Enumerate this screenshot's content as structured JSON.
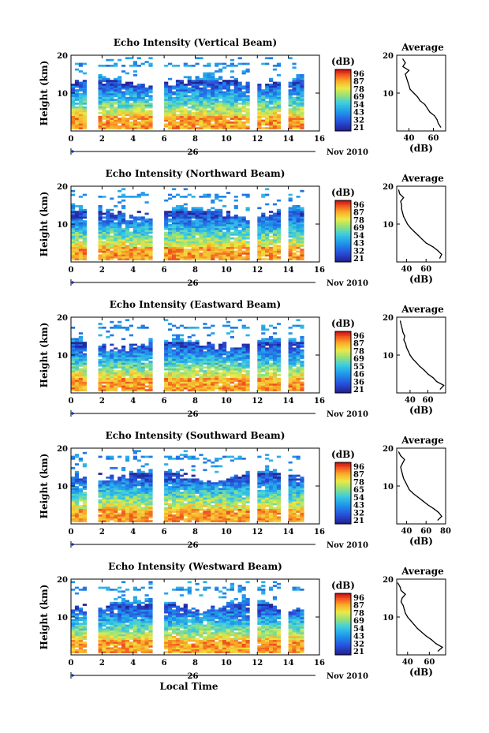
{
  "chart_data": [
    {
      "type": "heatmap",
      "title": "Echo Intensity (Vertical Beam)",
      "ylabel": "Height (km)",
      "xlim": [
        0,
        16
      ],
      "ylim": [
        0,
        20
      ],
      "x_ticks": [
        "0",
        "2",
        "4",
        "6",
        "8",
        "10",
        "12",
        "14",
        "16"
      ],
      "y_ticks": [
        "10",
        "20"
      ],
      "colorbar": {
        "unit": "(dB)",
        "labels": [
          "96",
          "87",
          "78",
          "69",
          "54",
          "43",
          "32",
          "21"
        ],
        "range": [
          21,
          96
        ]
      },
      "gaps_hours": [
        [
          1.0,
          1.7
        ],
        [
          5.3,
          5.9
        ],
        [
          11.5,
          11.9
        ],
        [
          13.6,
          14.0
        ]
      ],
      "date_label": "26",
      "month_label": "Nov 2010",
      "profile": {
        "title": "Average",
        "xlabel": "(dB)",
        "x_ticks": [
          "40",
          "60"
        ],
        "xlim": [
          30,
          70
        ],
        "y_ticks": [
          "10",
          "20"
        ],
        "heights": [
          1,
          2,
          3,
          4,
          5,
          6,
          7,
          8,
          9,
          10,
          11,
          12,
          13,
          14,
          15,
          16,
          17,
          18,
          19
        ],
        "values": [
          66,
          64,
          63,
          61,
          57,
          55,
          53,
          49,
          47,
          44,
          41,
          40,
          39,
          38,
          37,
          40,
          35,
          37,
          35
        ]
      }
    },
    {
      "type": "heatmap",
      "title": "Echo Intensity (Northward Beam)",
      "ylabel": "Height (km)",
      "xlim": [
        0,
        16
      ],
      "ylim": [
        0,
        20
      ],
      "x_ticks": [
        "0",
        "2",
        "4",
        "6",
        "8",
        "10",
        "12",
        "14",
        "16"
      ],
      "y_ticks": [
        "10",
        "20"
      ],
      "colorbar": {
        "unit": "(dB)",
        "labels": [
          "96",
          "87",
          "78",
          "69",
          "54",
          "43",
          "32",
          "21"
        ],
        "range": [
          21,
          96
        ]
      },
      "gaps_hours": [
        [
          1.0,
          1.7
        ],
        [
          5.3,
          5.9
        ],
        [
          11.5,
          11.9
        ],
        [
          13.6,
          14.0
        ]
      ],
      "date_label": "26",
      "month_label": "Nov 2010",
      "profile": {
        "title": "Average",
        "xlabel": "(dB)",
        "x_ticks": [
          "40",
          "60"
        ],
        "xlim": [
          30,
          80
        ],
        "y_ticks": [
          "10",
          "20"
        ],
        "heights": [
          1,
          2,
          3,
          4,
          5,
          6,
          7,
          8,
          9,
          10,
          11,
          12,
          13,
          14,
          15,
          16,
          17,
          18,
          19
        ],
        "values": [
          74,
          76,
          72,
          67,
          60,
          56,
          52,
          48,
          44,
          41,
          39,
          37,
          36,
          35,
          35,
          34,
          37,
          33,
          32
        ]
      }
    },
    {
      "type": "heatmap",
      "title": "Echo Intensity (Eastward Beam)",
      "ylabel": "Height (km)",
      "xlim": [
        0,
        16
      ],
      "ylim": [
        0,
        20
      ],
      "x_ticks": [
        "0",
        "2",
        "4",
        "6",
        "8",
        "10",
        "12",
        "14",
        "16"
      ],
      "y_ticks": [
        "10",
        "20"
      ],
      "colorbar": {
        "unit": "(dB)",
        "labels": [
          "96",
          "87",
          "78",
          "69",
          "55",
          "46",
          "36",
          "21"
        ],
        "range": [
          21,
          96
        ]
      },
      "gaps_hours": [
        [
          1.0,
          1.7
        ],
        [
          5.3,
          5.9
        ],
        [
          11.5,
          11.9
        ],
        [
          13.6,
          14.0
        ]
      ],
      "date_label": "26",
      "month_label": "Nov 2010",
      "profile": {
        "title": "Average",
        "xlabel": "(dB)",
        "x_ticks": [
          "40",
          "60"
        ],
        "xlim": [
          25,
          80
        ],
        "y_ticks": [
          "10",
          "20"
        ],
        "heights": [
          1,
          2,
          3,
          4,
          5,
          6,
          7,
          8,
          9,
          10,
          11,
          12,
          13,
          14,
          15,
          16,
          17,
          18,
          19
        ],
        "values": [
          74,
          78,
          70,
          66,
          60,
          56,
          51,
          47,
          43,
          40,
          38,
          36,
          35,
          33,
          34,
          32,
          31,
          30,
          29
        ]
      }
    },
    {
      "type": "heatmap",
      "title": "Echo Intensity (Southward Beam)",
      "ylabel": "Height (km)",
      "xlim": [
        0,
        16
      ],
      "ylim": [
        0,
        20
      ],
      "x_ticks": [
        "0",
        "2",
        "4",
        "6",
        "8",
        "10",
        "12",
        "14",
        "16"
      ],
      "y_ticks": [
        "10",
        "20"
      ],
      "colorbar": {
        "unit": "(dB)",
        "labels": [
          "96",
          "87",
          "78",
          "65",
          "54",
          "43",
          "32",
          "21"
        ],
        "range": [
          21,
          96
        ]
      },
      "gaps_hours": [
        [
          1.0,
          1.7
        ],
        [
          5.3,
          5.9
        ],
        [
          11.5,
          11.9
        ],
        [
          13.6,
          14.0
        ]
      ],
      "date_label": "26",
      "month_label": "Nov 2010",
      "profile": {
        "title": "Average",
        "xlabel": "(dB)",
        "x_ticks": [
          "40",
          "60",
          "80"
        ],
        "xlim": [
          30,
          80
        ],
        "y_ticks": [
          "10",
          "20"
        ],
        "heights": [
          1,
          2,
          3,
          4,
          5,
          6,
          7,
          8,
          9,
          10,
          11,
          12,
          13,
          14,
          15,
          16,
          17,
          18,
          19
        ],
        "values": [
          72,
          76,
          73,
          68,
          62,
          57,
          52,
          47,
          43,
          41,
          39,
          37,
          36,
          35,
          34,
          36,
          38,
          34,
          32
        ]
      }
    },
    {
      "type": "heatmap",
      "title": "Echo Intensity (Westward Beam)",
      "ylabel": "Height (km)",
      "xlabel": "Local Time",
      "xlim": [
        0,
        16
      ],
      "ylim": [
        0,
        20
      ],
      "x_ticks": [
        "0",
        "2",
        "4",
        "6",
        "8",
        "10",
        "12",
        "14",
        "16"
      ],
      "y_ticks": [
        "10",
        "20"
      ],
      "colorbar": {
        "unit": "(dB)",
        "labels": [
          "96",
          "87",
          "78",
          "69",
          "54",
          "43",
          "32",
          "21"
        ],
        "range": [
          21,
          96
        ]
      },
      "gaps_hours": [
        [
          1.0,
          1.7
        ],
        [
          5.3,
          5.9
        ],
        [
          11.5,
          11.9
        ],
        [
          13.6,
          14.0
        ]
      ],
      "date_label": "26",
      "month_label": "Nov 2010",
      "profile": {
        "title": "Average",
        "xlabel": "(dB)",
        "x_ticks": [
          "40",
          "60"
        ],
        "xlim": [
          30,
          75
        ],
        "y_ticks": [
          "10",
          "20"
        ],
        "heights": [
          1,
          2,
          3,
          4,
          5,
          6,
          7,
          8,
          9,
          10,
          11,
          12,
          13,
          14,
          15,
          16,
          17,
          18,
          19
        ],
        "values": [
          68,
          72,
          66,
          62,
          57,
          53,
          49,
          46,
          43,
          40,
          38,
          37,
          36,
          34,
          35,
          38,
          34,
          33,
          31
        ]
      }
    }
  ]
}
